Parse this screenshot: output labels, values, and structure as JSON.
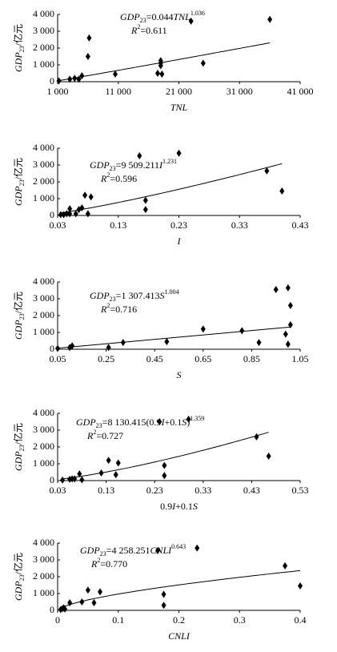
{
  "chart_data": [
    {
      "type": "scatter",
      "ylabel": [
        {
          "text": "GDP",
          "italic": true
        },
        {
          "text": "23",
          "shift": "sub"
        },
        {
          "text": "/亿元"
        }
      ],
      "xlabel": [
        {
          "text": "TNL",
          "italic": true
        }
      ],
      "equation": [
        [
          {
            "text": "GDP",
            "italic": true
          },
          {
            "text": "23",
            "shift": "sub"
          },
          {
            "text": "=0.044"
          },
          {
            "text": "TNL",
            "italic": true
          },
          {
            "text": "1.036",
            "shift": "sup"
          }
        ],
        [
          {
            "text": "R",
            "italic": true
          },
          {
            "text": "2",
            "shift": "sup"
          },
          {
            "text": "=0.611"
          }
        ]
      ],
      "fit": {
        "a": 0.044,
        "b": 1.036
      },
      "xlim": [
        1000,
        41000
      ],
      "xticks": [
        {
          "value": 1000,
          "label": "1 000"
        },
        {
          "value": 11000,
          "label": "11 000"
        },
        {
          "value": 21000,
          "label": "21 000"
        },
        {
          "value": 31000,
          "label": "31 000"
        },
        {
          "value": 41000,
          "label": "41 000"
        }
      ],
      "ylim": [
        0,
        4000
      ],
      "yticks": [
        0,
        {
          "value": 1000,
          "label": "1 000"
        },
        {
          "value": 2000,
          "label": "2 000"
        },
        {
          "value": 3000,
          "label": "3 000"
        },
        {
          "value": 4000,
          "label": "4 000"
        }
      ],
      "color": "#000000",
      "x": [
        1200,
        3000,
        3800,
        4500,
        5000,
        6000,
        6200,
        10500,
        17500,
        18000,
        18000,
        18000,
        18200,
        23000,
        25000,
        36000
      ],
      "values": [
        50,
        150,
        200,
        150,
        350,
        1500,
        2600,
        450,
        500,
        1250,
        1100,
        950,
        450,
        3600,
        1100,
        3700
      ]
    },
    {
      "type": "scatter",
      "ylabel": [
        {
          "text": "GDP",
          "italic": true
        },
        {
          "text": "23",
          "shift": "sub"
        },
        {
          "text": "/亿元"
        }
      ],
      "xlabel": [
        {
          "text": "I",
          "italic": true
        }
      ],
      "equation": [
        [
          {
            "text": "GDP",
            "italic": true
          },
          {
            "text": "23",
            "shift": "sub"
          },
          {
            "text": "=9 509.211"
          },
          {
            "text": "I",
            "italic": true
          },
          {
            "text": "1.231",
            "shift": "sup"
          }
        ],
        [
          {
            "text": "R",
            "italic": true
          },
          {
            "text": "2",
            "shift": "sup"
          },
          {
            "text": "=0.596"
          }
        ]
      ],
      "fit": {
        "a": 9509.211,
        "b": 1.231
      },
      "xlim": [
        0.03,
        0.43
      ],
      "xticks": [
        0.03,
        0.13,
        0.23,
        0.33,
        0.43
      ],
      "ylim": [
        0,
        4000
      ],
      "yticks": [
        0,
        {
          "value": 1000,
          "label": "1 000"
        },
        {
          "value": 2000,
          "label": "2 000"
        },
        {
          "value": 3000,
          "label": "3 000"
        },
        {
          "value": 4000,
          "label": "4 000"
        }
      ],
      "color": "#000000",
      "x": [
        0.035,
        0.04,
        0.045,
        0.05,
        0.05,
        0.06,
        0.065,
        0.07,
        0.075,
        0.08,
        0.085,
        0.165,
        0.175,
        0.175,
        0.23,
        0.375,
        0.4
      ],
      "values": [
        50,
        50,
        100,
        400,
        100,
        100,
        350,
        450,
        1200,
        100,
        1100,
        3550,
        900,
        350,
        3700,
        2650,
        1450
      ]
    },
    {
      "type": "scatter",
      "ylabel": [
        {
          "text": "GDP",
          "italic": true
        },
        {
          "text": "23",
          "shift": "sub"
        },
        {
          "text": "/亿元"
        }
      ],
      "xlabel": [
        {
          "text": "S",
          "italic": true
        }
      ],
      "equation": [
        [
          {
            "text": "GDP",
            "italic": true
          },
          {
            "text": "23",
            "shift": "sub"
          },
          {
            "text": "=1 307.413"
          },
          {
            "text": "S",
            "italic": true
          },
          {
            "text": "1.004",
            "shift": "sup"
          }
        ],
        [
          {
            "text": "R",
            "italic": true
          },
          {
            "text": "2",
            "shift": "sup"
          },
          {
            "text": "=0.716"
          }
        ]
      ],
      "fit": {
        "a": 1307.413,
        "b": 1.004
      },
      "xlim": [
        0.05,
        1.05
      ],
      "xticks": [
        0.05,
        0.25,
        0.45,
        0.65,
        0.85,
        1.05
      ],
      "ylim": [
        0,
        4000
      ],
      "yticks": [
        0,
        {
          "value": 1000,
          "label": "1 000"
        },
        {
          "value": 2000,
          "label": "2 000"
        },
        {
          "value": 3000,
          "label": "3 000"
        },
        {
          "value": 4000,
          "label": "4 000"
        }
      ],
      "color": "#000000",
      "x": [
        0.05,
        0.1,
        0.11,
        0.26,
        0.32,
        0.5,
        0.65,
        0.81,
        0.88,
        0.95,
        0.99,
        1.0,
        1.01,
        1.01,
        1.0
      ],
      "values": [
        50,
        100,
        200,
        100,
        400,
        450,
        1200,
        1100,
        400,
        3550,
        900,
        3650,
        2600,
        1450,
        300
      ]
    },
    {
      "type": "scatter",
      "ylabel": [
        {
          "text": "GDP",
          "italic": true
        },
        {
          "text": "23",
          "shift": "sub"
        },
        {
          "text": "/亿元"
        }
      ],
      "xlabel": [
        {
          "text": "0.9"
        },
        {
          "text": "I",
          "italic": true
        },
        {
          "text": "+0.1"
        },
        {
          "text": "S",
          "italic": true
        }
      ],
      "equation": [
        [
          {
            "text": "GDP",
            "italic": true
          },
          {
            "text": "23",
            "shift": "sub"
          },
          {
            "text": "=8 130.415(0.9"
          },
          {
            "text": "I",
            "italic": true
          },
          {
            "text": "+0.1"
          },
          {
            "text": "S",
            "italic": true
          },
          {
            "text": ")"
          },
          {
            "text": "1.359",
            "shift": "sup"
          }
        ],
        [
          {
            "text": "R",
            "italic": true
          },
          {
            "text": "2",
            "shift": "sup"
          },
          {
            "text": "=0.727"
          }
        ]
      ],
      "fit": {
        "a": 8130.415,
        "b": 1.359
      },
      "xlim": [
        0.03,
        0.53
      ],
      "xticks": [
        0.03,
        0.13,
        0.23,
        0.33,
        0.43,
        0.53
      ],
      "ylim": [
        0,
        4000
      ],
      "yticks": [
        0,
        {
          "value": 1000,
          "label": "1 000"
        },
        {
          "value": 2000,
          "label": "2 000"
        },
        {
          "value": 3000,
          "label": "3 000"
        },
        {
          "value": 4000,
          "label": "4 000"
        }
      ],
      "color": "#000000",
      "x": [
        0.04,
        0.055,
        0.06,
        0.065,
        0.075,
        0.08,
        0.12,
        0.135,
        0.15,
        0.155,
        0.24,
        0.25,
        0.25,
        0.3,
        0.44,
        0.465
      ],
      "values": [
        30,
        80,
        100,
        100,
        400,
        50,
        450,
        1200,
        350,
        1050,
        3500,
        900,
        300,
        3650,
        2600,
        1450
      ]
    },
    {
      "type": "scatter",
      "ylabel": [
        {
          "text": "GDP",
          "italic": true
        },
        {
          "text": "23",
          "shift": "sub"
        },
        {
          "text": "/亿元"
        }
      ],
      "xlabel": [
        {
          "text": "CNLI",
          "italic": true
        }
      ],
      "equation": [
        [
          {
            "text": "GDP",
            "italic": true
          },
          {
            "text": "23",
            "shift": "sub"
          },
          {
            "text": "=4 258.251"
          },
          {
            "text": "CNLI",
            "italic": true
          },
          {
            "text": "0.643",
            "shift": "sup"
          }
        ],
        [
          {
            "text": "R",
            "italic": true
          },
          {
            "text": "2",
            "shift": "sup"
          },
          {
            "text": "=0.770"
          }
        ]
      ],
      "fit": {
        "a": 4258.251,
        "b": 0.643
      },
      "xlim": [
        0,
        0.4
      ],
      "xticks": [
        0,
        0.1,
        0.2,
        0.3,
        0.4
      ],
      "ylim": [
        0,
        4000
      ],
      "yticks": [
        0,
        {
          "value": 1000,
          "label": "1 000"
        },
        {
          "value": 2000,
          "label": "2 000"
        },
        {
          "value": 3000,
          "label": "3 000"
        },
        {
          "value": 4000,
          "label": "4 000"
        }
      ],
      "color": "#000000",
      "x": [
        0.005,
        0.008,
        0.01,
        0.012,
        0.02,
        0.04,
        0.05,
        0.06,
        0.07,
        0.165,
        0.175,
        0.175,
        0.23,
        0.375,
        0.4
      ],
      "values": [
        50,
        100,
        150,
        80,
        450,
        500,
        1200,
        450,
        1100,
        3550,
        950,
        300,
        3700,
        2650,
        1450
      ]
    }
  ]
}
